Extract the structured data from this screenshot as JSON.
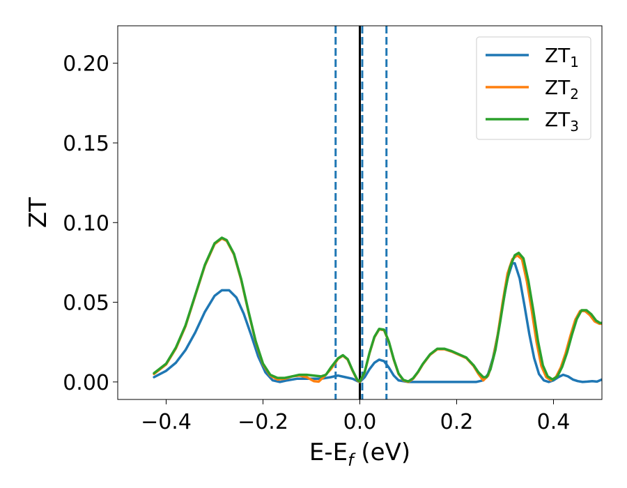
{
  "chart_data": {
    "type": "line",
    "xlabel": "E-E_f (eV)",
    "ylabel": "ZT",
    "xlim": [
      -0.5,
      0.5
    ],
    "ylim": [
      -0.011,
      0.2235
    ],
    "xticks": [
      -0.4,
      -0.2,
      0.0,
      0.2,
      0.4
    ],
    "yticks": [
      0.0,
      0.05,
      0.1,
      0.15,
      0.2
    ],
    "xtick_labels": [
      "−0.4",
      "−0.2",
      "0.0",
      "0.2",
      "0.4"
    ],
    "ytick_labels": [
      "0.00",
      "0.05",
      "0.10",
      "0.15",
      "0.20"
    ],
    "grid": false,
    "legend_position": "top-right",
    "vlines": [
      {
        "x": -0.05,
        "style": "dashed",
        "color": "#1f77b4"
      },
      {
        "x": 0.0,
        "style": "solid",
        "color": "#000000"
      },
      {
        "x": 0.005,
        "style": "dashed",
        "color": "#1f77b4"
      },
      {
        "x": 0.055,
        "style": "dashed",
        "color": "#1f77b4"
      }
    ],
    "series": [
      {
        "name": "ZT",
        "subscript": "1",
        "color": "#1f77b4",
        "points": [
          [
            -0.425,
            0.003
          ],
          [
            -0.4,
            0.007
          ],
          [
            -0.38,
            0.012
          ],
          [
            -0.36,
            0.02
          ],
          [
            -0.34,
            0.031
          ],
          [
            -0.32,
            0.044
          ],
          [
            -0.3,
            0.054
          ],
          [
            -0.285,
            0.0575
          ],
          [
            -0.27,
            0.0575
          ],
          [
            -0.255,
            0.053
          ],
          [
            -0.24,
            0.043
          ],
          [
            -0.225,
            0.03
          ],
          [
            -0.21,
            0.016
          ],
          [
            -0.195,
            0.006
          ],
          [
            -0.18,
            0.001
          ],
          [
            -0.165,
            0.0
          ],
          [
            -0.15,
            0.001
          ],
          [
            -0.13,
            0.002
          ],
          [
            -0.1,
            0.002
          ],
          [
            -0.08,
            0.002
          ],
          [
            -0.06,
            0.003
          ],
          [
            -0.045,
            0.004
          ],
          [
            -0.03,
            0.003
          ],
          [
            -0.015,
            0.002
          ],
          [
            -0.005,
            0.0005
          ],
          [
            0.0,
            0.0
          ],
          [
            0.01,
            0.003
          ],
          [
            0.02,
            0.008
          ],
          [
            0.03,
            0.012
          ],
          [
            0.04,
            0.014
          ],
          [
            0.05,
            0.013
          ],
          [
            0.06,
            0.009
          ],
          [
            0.07,
            0.004
          ],
          [
            0.08,
            0.001
          ],
          [
            0.1,
            0.0
          ],
          [
            0.15,
            0.0
          ],
          [
            0.2,
            0.0
          ],
          [
            0.22,
            0.0
          ],
          [
            0.24,
            0.0
          ],
          [
            0.255,
            0.001
          ],
          [
            0.265,
            0.005
          ],
          [
            0.275,
            0.015
          ],
          [
            0.285,
            0.03
          ],
          [
            0.295,
            0.048
          ],
          [
            0.305,
            0.065
          ],
          [
            0.315,
            0.0745
          ],
          [
            0.32,
            0.0745
          ],
          [
            0.33,
            0.065
          ],
          [
            0.34,
            0.048
          ],
          [
            0.35,
            0.03
          ],
          [
            0.36,
            0.015
          ],
          [
            0.37,
            0.005
          ],
          [
            0.38,
            0.001
          ],
          [
            0.39,
            0.0
          ],
          [
            0.4,
            0.001
          ],
          [
            0.41,
            0.003
          ],
          [
            0.42,
            0.0045
          ],
          [
            0.43,
            0.0035
          ],
          [
            0.44,
            0.0015
          ],
          [
            0.45,
            0.0005
          ],
          [
            0.46,
            0.0
          ],
          [
            0.47,
            0.0002
          ],
          [
            0.48,
            0.0005
          ],
          [
            0.49,
            0.0002
          ],
          [
            0.5,
            0.0015
          ]
        ]
      },
      {
        "name": "ZT",
        "subscript": "2",
        "color": "#ff7f0e",
        "points": [
          [
            -0.425,
            0.005
          ],
          [
            -0.4,
            0.011
          ],
          [
            -0.38,
            0.021
          ],
          [
            -0.36,
            0.035
          ],
          [
            -0.34,
            0.054
          ],
          [
            -0.32,
            0.073
          ],
          [
            -0.3,
            0.0865
          ],
          [
            -0.285,
            0.09
          ],
          [
            -0.275,
            0.0885
          ],
          [
            -0.26,
            0.08
          ],
          [
            -0.245,
            0.064
          ],
          [
            -0.23,
            0.044
          ],
          [
            -0.215,
            0.025
          ],
          [
            -0.2,
            0.011
          ],
          [
            -0.185,
            0.004
          ],
          [
            -0.17,
            0.0015
          ],
          [
            -0.155,
            0.002
          ],
          [
            -0.14,
            0.0035
          ],
          [
            -0.125,
            0.004
          ],
          [
            -0.11,
            0.003
          ],
          [
            -0.095,
            0.0005
          ],
          [
            -0.085,
            0.0002
          ],
          [
            -0.075,
            0.003
          ],
          [
            -0.06,
            0.008
          ],
          [
            -0.045,
            0.0145
          ],
          [
            -0.035,
            0.0165
          ],
          [
            -0.025,
            0.014
          ],
          [
            -0.015,
            0.007
          ],
          [
            -0.005,
            0.001
          ],
          [
            0.0,
            0.0
          ],
          [
            0.01,
            0.006
          ],
          [
            0.02,
            0.018
          ],
          [
            0.03,
            0.028
          ],
          [
            0.04,
            0.033
          ],
          [
            0.05,
            0.0325
          ],
          [
            0.06,
            0.025
          ],
          [
            0.07,
            0.014
          ],
          [
            0.08,
            0.005
          ],
          [
            0.09,
            0.001
          ],
          [
            0.1,
            0.0
          ],
          [
            0.11,
            0.002
          ],
          [
            0.12,
            0.006
          ],
          [
            0.13,
            0.011
          ],
          [
            0.145,
            0.017
          ],
          [
            0.16,
            0.0205
          ],
          [
            0.175,
            0.0205
          ],
          [
            0.19,
            0.019
          ],
          [
            0.205,
            0.017
          ],
          [
            0.22,
            0.015
          ],
          [
            0.235,
            0.01
          ],
          [
            0.245,
            0.005
          ],
          [
            0.255,
            0.001
          ],
          [
            0.265,
            0.004
          ],
          [
            0.275,
            0.014
          ],
          [
            0.285,
            0.03
          ],
          [
            0.295,
            0.05
          ],
          [
            0.305,
            0.068
          ],
          [
            0.315,
            0.077
          ],
          [
            0.325,
            0.0795
          ],
          [
            0.335,
            0.077
          ],
          [
            0.345,
            0.063
          ],
          [
            0.355,
            0.045
          ],
          [
            0.365,
            0.025
          ],
          [
            0.375,
            0.01
          ],
          [
            0.385,
            0.003
          ],
          [
            0.395,
            0.001
          ],
          [
            0.405,
            0.003
          ],
          [
            0.415,
            0.009
          ],
          [
            0.425,
            0.018
          ],
          [
            0.435,
            0.029
          ],
          [
            0.445,
            0.039
          ],
          [
            0.455,
            0.0445
          ],
          [
            0.465,
            0.0445
          ],
          [
            0.475,
            0.042
          ],
          [
            0.485,
            0.038
          ],
          [
            0.495,
            0.0365
          ],
          [
            0.5,
            0.0365
          ]
        ]
      },
      {
        "name": "ZT",
        "subscript": "3",
        "color": "#2ca02c",
        "points": [
          [
            -0.425,
            0.0055
          ],
          [
            -0.4,
            0.0115
          ],
          [
            -0.38,
            0.0215
          ],
          [
            -0.36,
            0.0355
          ],
          [
            -0.34,
            0.0545
          ],
          [
            -0.32,
            0.0735
          ],
          [
            -0.3,
            0.087
          ],
          [
            -0.285,
            0.0905
          ],
          [
            -0.275,
            0.089
          ],
          [
            -0.26,
            0.0805
          ],
          [
            -0.245,
            0.0645
          ],
          [
            -0.23,
            0.0445
          ],
          [
            -0.215,
            0.0255
          ],
          [
            -0.2,
            0.0115
          ],
          [
            -0.185,
            0.0045
          ],
          [
            -0.17,
            0.0025
          ],
          [
            -0.155,
            0.0025
          ],
          [
            -0.14,
            0.0035
          ],
          [
            -0.125,
            0.0045
          ],
          [
            -0.11,
            0.0045
          ],
          [
            -0.095,
            0.004
          ],
          [
            -0.08,
            0.0035
          ],
          [
            -0.07,
            0.0045
          ],
          [
            -0.06,
            0.009
          ],
          [
            -0.045,
            0.0148
          ],
          [
            -0.035,
            0.0168
          ],
          [
            -0.025,
            0.0143
          ],
          [
            -0.015,
            0.0073
          ],
          [
            -0.005,
            0.0013
          ],
          [
            0.0,
            0.0003
          ],
          [
            0.01,
            0.0063
          ],
          [
            0.02,
            0.0183
          ],
          [
            0.03,
            0.0283
          ],
          [
            0.04,
            0.0333
          ],
          [
            0.05,
            0.0328
          ],
          [
            0.06,
            0.0253
          ],
          [
            0.07,
            0.0143
          ],
          [
            0.08,
            0.0053
          ],
          [
            0.09,
            0.0013
          ],
          [
            0.1,
            0.0003
          ],
          [
            0.11,
            0.0023
          ],
          [
            0.12,
            0.0063
          ],
          [
            0.13,
            0.0113
          ],
          [
            0.145,
            0.0173
          ],
          [
            0.16,
            0.0208
          ],
          [
            0.175,
            0.0208
          ],
          [
            0.19,
            0.0193
          ],
          [
            0.205,
            0.0173
          ],
          [
            0.22,
            0.0153
          ],
          [
            0.235,
            0.0105
          ],
          [
            0.245,
            0.006
          ],
          [
            0.255,
            0.003
          ],
          [
            0.262,
            0.003
          ],
          [
            0.27,
            0.008
          ],
          [
            0.28,
            0.02
          ],
          [
            0.29,
            0.038
          ],
          [
            0.3,
            0.057
          ],
          [
            0.31,
            0.072
          ],
          [
            0.32,
            0.0795
          ],
          [
            0.328,
            0.081
          ],
          [
            0.338,
            0.0775
          ],
          [
            0.348,
            0.0635
          ],
          [
            0.358,
            0.0455
          ],
          [
            0.368,
            0.0255
          ],
          [
            0.378,
            0.0105
          ],
          [
            0.388,
            0.0035
          ],
          [
            0.398,
            0.0015
          ],
          [
            0.408,
            0.0035
          ],
          [
            0.418,
            0.0095
          ],
          [
            0.428,
            0.0185
          ],
          [
            0.438,
            0.0295
          ],
          [
            0.448,
            0.0395
          ],
          [
            0.458,
            0.045
          ],
          [
            0.468,
            0.045
          ],
          [
            0.478,
            0.0425
          ],
          [
            0.488,
            0.0385
          ],
          [
            0.496,
            0.037
          ],
          [
            0.5,
            0.037
          ]
        ]
      }
    ]
  }
}
